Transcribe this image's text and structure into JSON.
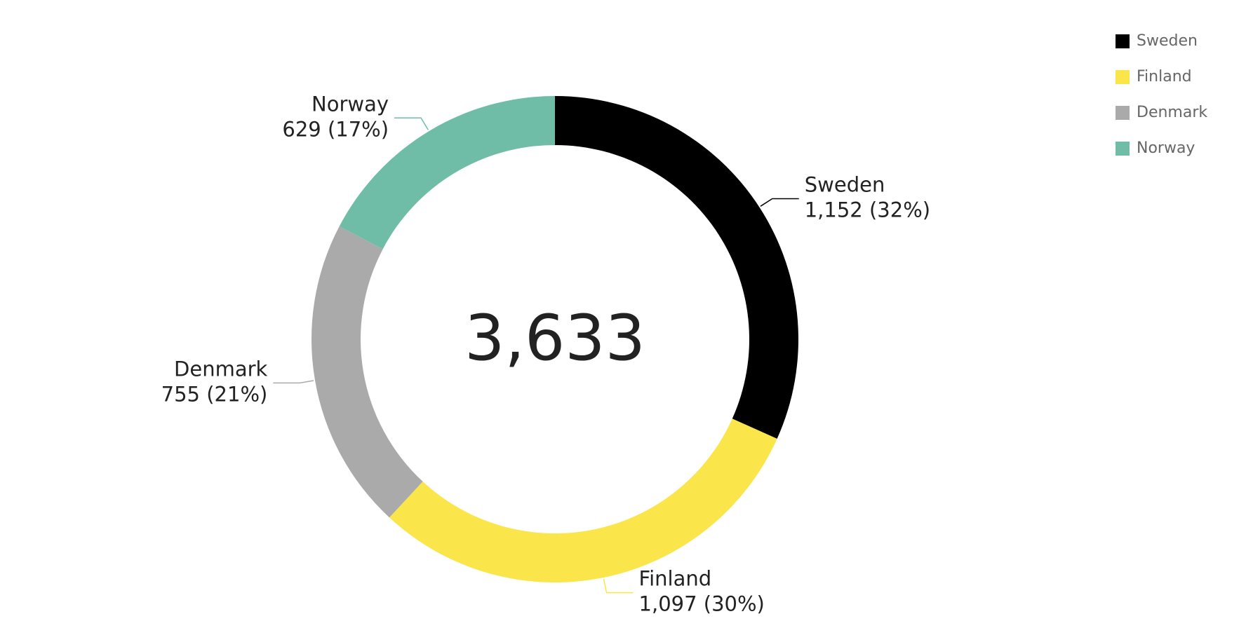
{
  "chart_data": {
    "type": "donut",
    "categories": [
      "Sweden",
      "Finland",
      "Denmark",
      "Norway"
    ],
    "values": [
      1152,
      1097,
      755,
      629
    ],
    "value_labels": [
      "1,152 (32%)",
      "1,097 (30%)",
      "755 (21%)",
      "629 (17%)"
    ],
    "colors": [
      "#000000",
      "#fae54a",
      "#aaaaaa",
      "#6fbda7"
    ],
    "center_label": "3,633",
    "legend": "top-right"
  }
}
